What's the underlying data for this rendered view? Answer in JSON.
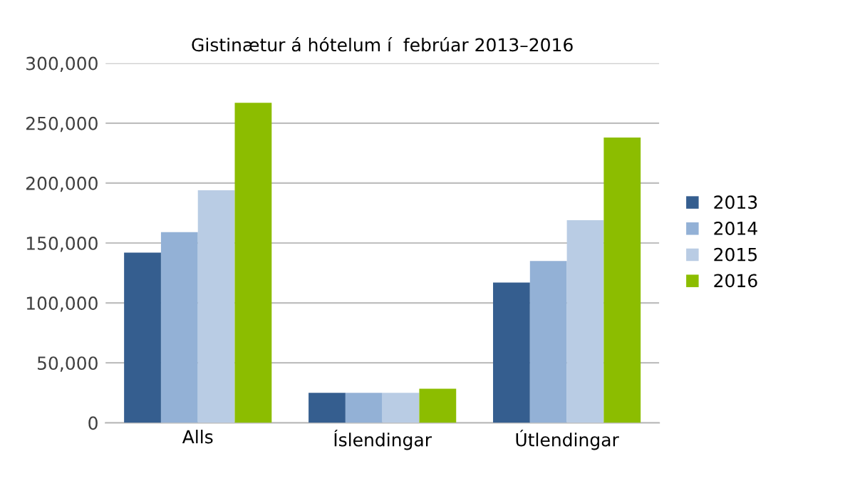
{
  "chart_data": {
    "type": "bar",
    "title": "Gistinætur á hótelum í  febrúar 2013–2016",
    "categories": [
      "Alls",
      "Íslendingar",
      "Útlendingar"
    ],
    "series": [
      {
        "name": "2013",
        "color": "#355e8f",
        "values": [
          142000,
          25000,
          117000
        ]
      },
      {
        "name": "2014",
        "color": "#93b1d6",
        "values": [
          159000,
          25000,
          135000
        ]
      },
      {
        "name": "2015",
        "color": "#b9cce4",
        "values": [
          194000,
          25000,
          169000
        ]
      },
      {
        "name": "2016",
        "color": "#8cbd00",
        "values": [
          267000,
          28500,
          238000
        ]
      }
    ],
    "ylim": [
      0,
      300000
    ],
    "yticks": [
      {
        "value": 0,
        "label": "0"
      },
      {
        "value": 50000,
        "label": "50,000"
      },
      {
        "value": 100000,
        "label": "100,000"
      },
      {
        "value": 150000,
        "label": "150,000"
      },
      {
        "value": 200000,
        "label": "200,000"
      },
      {
        "value": 250000,
        "label": "250,000"
      },
      {
        "value": 300000,
        "label": "300,000"
      }
    ],
    "grid": "y",
    "legend": "right"
  }
}
